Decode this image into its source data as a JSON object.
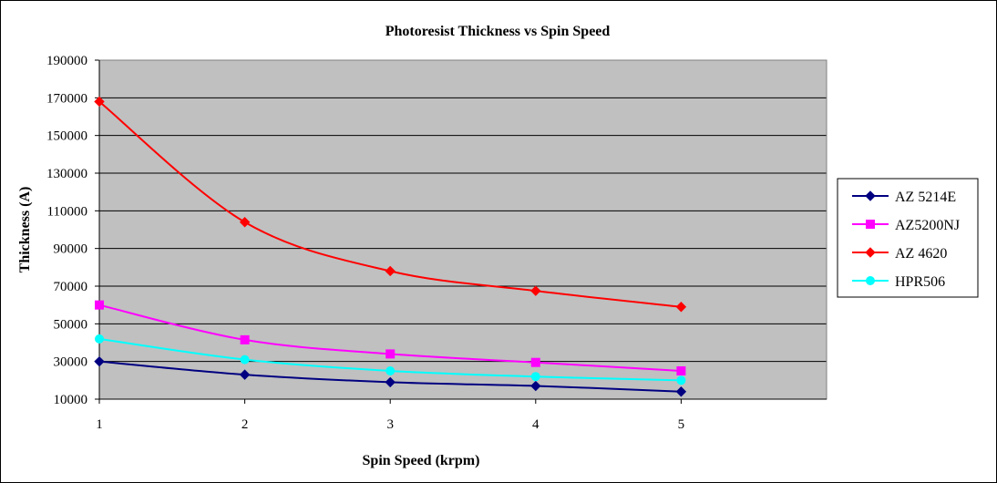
{
  "chart_data": {
    "type": "line",
    "title": "Photoresist Thickness vs Spin Speed",
    "xlabel": "Spin Speed (krpm)",
    "ylabel": "Thickness (A)",
    "x": [
      1,
      2,
      3,
      4,
      5
    ],
    "x_ticks": [
      "1",
      "2",
      "3",
      "4",
      "5"
    ],
    "xlim": [
      1,
      6
    ],
    "ylim": [
      10000,
      190000
    ],
    "y_ticks": [
      "10000",
      "30000",
      "50000",
      "70000",
      "90000",
      "110000",
      "130000",
      "150000",
      "170000",
      "190000"
    ],
    "grid": "horizontal",
    "legend_position": "right",
    "plot_background": "#C0C0C0",
    "series": [
      {
        "name": "AZ 5214E",
        "values": [
          30000,
          23000,
          19000,
          17000,
          14000
        ],
        "color": "#000080",
        "marker": "diamond"
      },
      {
        "name": "AZ5200NJ",
        "values": [
          60000,
          41500,
          34000,
          29500,
          25000
        ],
        "color": "#FF00FF",
        "marker": "square"
      },
      {
        "name": "AZ 4620",
        "values": [
          168000,
          104000,
          78000,
          67500,
          59000
        ],
        "color": "#FF0000",
        "marker": "diamond"
      },
      {
        "name": "HPR506",
        "values": [
          42000,
          31000,
          25000,
          22000,
          20000
        ],
        "color": "#00FFFF",
        "marker": "circle"
      }
    ]
  }
}
